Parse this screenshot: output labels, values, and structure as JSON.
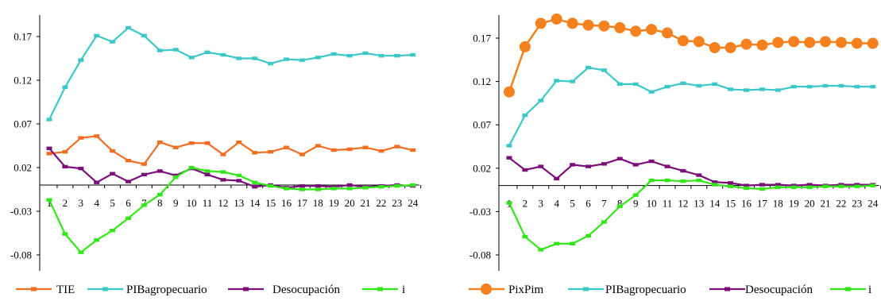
{
  "colors": {
    "TIE": "#f26c21",
    "PIBagropecuario": "#3cc8c8",
    "Desocupacion": "#7a0f7a",
    "i": "#33e61a",
    "PixPim": "#f5801e"
  },
  "chart_data": [
    {
      "type": "line",
      "x": [
        1,
        2,
        3,
        4,
        5,
        6,
        7,
        8,
        9,
        10,
        11,
        12,
        13,
        14,
        15,
        16,
        17,
        18,
        19,
        20,
        21,
        22,
        23,
        24
      ],
      "ylim": [
        -0.08,
        0.2
      ],
      "yticks": [
        -0.08,
        -0.03,
        0.02,
        0.07,
        0.12,
        0.17
      ],
      "ytick_labels": [
        "-0.08",
        "-0.03",
        "0.02",
        "0.07",
        "0.12",
        "0.17"
      ],
      "xtick_labels": [
        "1",
        "2",
        "3",
        "4",
        "5",
        "6",
        "7",
        "8",
        "9",
        "10",
        "11",
        "12",
        "13",
        "14",
        "15",
        "16",
        "17",
        "18",
        "19",
        "20",
        "21",
        "22",
        "23",
        "24"
      ],
      "legend_position": "bottom",
      "series": [
        {
          "name": "TIE",
          "color_key": "TIE",
          "marker": "square",
          "values": [
            0.036,
            0.038,
            0.054,
            0.056,
            0.039,
            0.028,
            0.024,
            0.049,
            0.043,
            0.048,
            0.048,
            0.035,
            0.049,
            0.037,
            0.038,
            0.043,
            0.035,
            0.045,
            0.04,
            0.041,
            0.043,
            0.039,
            0.044,
            0.04
          ]
        },
        {
          "name": "PIBagropecuario",
          "color_key": "PIBagropecuario",
          "marker": "square",
          "values": [
            0.075,
            0.112,
            0.143,
            0.171,
            0.164,
            0.18,
            0.171,
            0.154,
            0.155,
            0.146,
            0.152,
            0.149,
            0.145,
            0.145,
            0.139,
            0.144,
            0.143,
            0.146,
            0.15,
            0.148,
            0.151,
            0.148,
            0.148,
            0.149
          ]
        },
        {
          "name": "Desocupación",
          "color_key": "Desocupacion",
          "marker": "square",
          "values": [
            0.042,
            0.021,
            0.019,
            0.003,
            0.013,
            0.004,
            0.012,
            0.016,
            0.011,
            0.019,
            0.012,
            0.006,
            0.005,
            -0.002,
            0.0,
            -0.003,
            -0.001,
            -0.001,
            -0.002,
            0.0,
            -0.002,
            -0.001,
            0.0,
            -0.001
          ]
        },
        {
          "name": "i",
          "color_key": "i",
          "marker": "square",
          "values": [
            -0.017,
            -0.056,
            -0.077,
            -0.063,
            -0.052,
            -0.038,
            -0.023,
            -0.011,
            0.009,
            0.02,
            0.016,
            0.015,
            0.011,
            0.003,
            -0.001,
            -0.004,
            -0.005,
            -0.005,
            -0.004,
            -0.004,
            -0.003,
            -0.002,
            -0.001,
            0.0
          ]
        }
      ]
    },
    {
      "type": "line",
      "x": [
        1,
        2,
        3,
        4,
        5,
        6,
        7,
        8,
        9,
        10,
        11,
        12,
        13,
        14,
        15,
        16,
        17,
        18,
        19,
        20,
        21,
        22,
        23,
        24
      ],
      "ylim": [
        -0.08,
        0.2
      ],
      "yticks": [
        -0.08,
        -0.03,
        0.02,
        0.07,
        0.12,
        0.17
      ],
      "ytick_labels": [
        "-0.08",
        "-0.03",
        "0.02",
        "0.07",
        "0.12",
        "0.17"
      ],
      "xtick_labels": [
        "1",
        "2",
        "3",
        "4",
        "5",
        "6",
        "7",
        "8",
        "9",
        "10",
        "11",
        "12",
        "13",
        "14",
        "15",
        "16",
        "17",
        "18",
        "19",
        "20",
        "21",
        "22",
        "23",
        "24"
      ],
      "legend_position": "bottom",
      "series": [
        {
          "name": "PixPim",
          "color_key": "PixPim",
          "marker": "circle",
          "values": [
            0.108,
            0.16,
            0.187,
            0.192,
            0.187,
            0.185,
            0.184,
            0.182,
            0.178,
            0.18,
            0.176,
            0.167,
            0.166,
            0.159,
            0.159,
            0.163,
            0.162,
            0.165,
            0.166,
            0.165,
            0.166,
            0.165,
            0.164,
            0.164
          ]
        },
        {
          "name": "PIBagropecuario",
          "color_key": "PIBagropecuario",
          "marker": "square",
          "values": [
            0.046,
            0.081,
            0.098,
            0.121,
            0.12,
            0.136,
            0.133,
            0.117,
            0.117,
            0.108,
            0.114,
            0.118,
            0.115,
            0.117,
            0.111,
            0.11,
            0.111,
            0.11,
            0.114,
            0.114,
            0.115,
            0.115,
            0.114,
            0.114
          ]
        },
        {
          "name": "Desocupación",
          "color_key": "Desocupacion",
          "marker": "square",
          "values": [
            0.032,
            0.018,
            0.022,
            0.008,
            0.024,
            0.022,
            0.025,
            0.031,
            0.024,
            0.028,
            0.022,
            0.017,
            0.012,
            0.004,
            0.003,
            0.0,
            0.001,
            0.001,
            0.0,
            0.001,
            0.0,
            0.001,
            0.001,
            0.001
          ]
        },
        {
          "name": "i",
          "color_key": "i",
          "marker": "square",
          "values": [
            -0.02,
            -0.059,
            -0.074,
            -0.067,
            -0.067,
            -0.058,
            -0.042,
            -0.024,
            -0.011,
            0.006,
            0.006,
            0.005,
            0.006,
            0.001,
            -0.001,
            -0.003,
            -0.004,
            -0.002,
            -0.002,
            -0.002,
            -0.001,
            -0.001,
            -0.001,
            0.0
          ]
        }
      ]
    }
  ]
}
